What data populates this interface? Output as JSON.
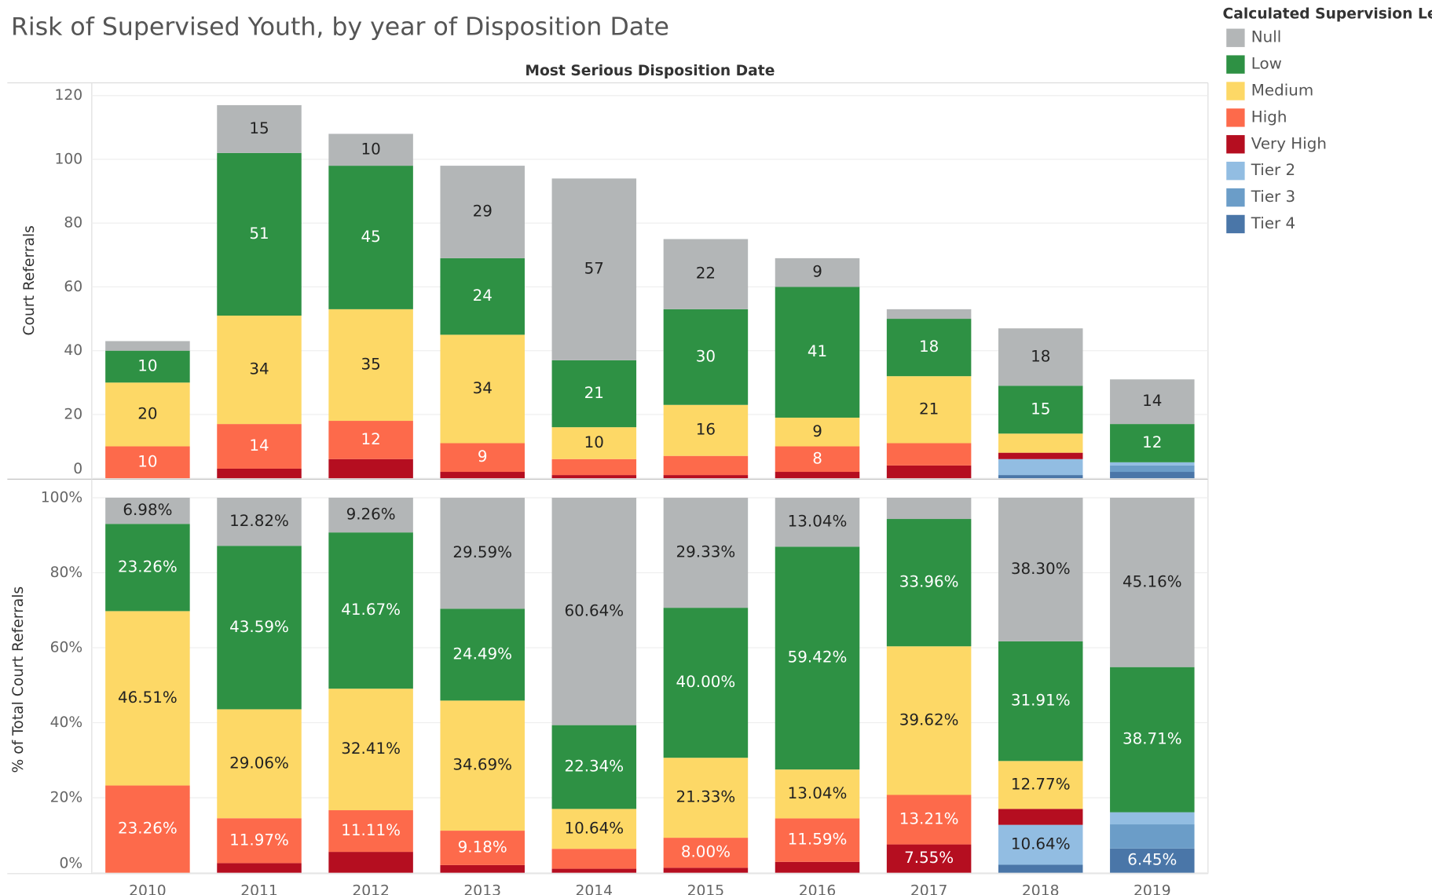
{
  "chart_data": [
    {
      "type": "bar",
      "stacked": true,
      "title": "Risk of Supervised Youth, by year of Disposition Date",
      "x_label": "Most Serious Disposition Date",
      "y_label": "Court Referrals",
      "legend_title": "Calculated Supervision Le..",
      "ylim": [
        0,
        124
      ],
      "yticks": [
        0,
        20,
        40,
        60,
        80,
        100,
        120
      ],
      "grid": true,
      "series": [
        {
          "name": "Null",
          "color": "#b3b6b7",
          "values": [
            3,
            15,
            10,
            29,
            57,
            22,
            9,
            3,
            18,
            14
          ],
          "value_labels": [
            null,
            "15",
            "10",
            "29",
            "57",
            "22",
            "9",
            null,
            "18",
            "14"
          ]
        },
        {
          "name": "Low",
          "color": "#2e9144",
          "values": [
            10,
            51,
            45,
            24,
            21,
            30,
            41,
            18,
            15,
            12
          ],
          "value_labels": [
            "10",
            "51",
            "45",
            "24",
            "21",
            "30",
            "41",
            "18",
            "15",
            "12"
          ]
        },
        {
          "name": "Medium",
          "color": "#fdd866",
          "values": [
            20,
            34,
            35,
            34,
            10,
            16,
            9,
            21,
            6,
            0
          ],
          "value_labels": [
            "20",
            "34",
            "35",
            "34",
            "10",
            "16",
            "9",
            "21",
            null,
            null
          ]
        },
        {
          "name": "High",
          "color": "#fd6a4b",
          "values": [
            10,
            14,
            12,
            9,
            5,
            6,
            8,
            7,
            0,
            0
          ],
          "value_labels": [
            "10",
            "14",
            "12",
            "9",
            null,
            null,
            "8",
            null,
            null,
            null
          ]
        },
        {
          "name": "Very High",
          "color": "#b50e20",
          "values": [
            0,
            3,
            6,
            2,
            1,
            1,
            2,
            4,
            2,
            0
          ],
          "value_labels": [
            null,
            null,
            null,
            null,
            null,
            null,
            null,
            null,
            null,
            null
          ]
        },
        {
          "name": "Tier 2",
          "color": "#92bde2",
          "values": [
            0,
            0,
            0,
            0,
            0,
            0,
            0,
            0,
            5,
            1
          ],
          "value_labels": [
            null,
            null,
            null,
            null,
            null,
            null,
            null,
            null,
            null,
            null
          ]
        },
        {
          "name": "Tier 3",
          "color": "#6b9dc8",
          "values": [
            0,
            0,
            0,
            0,
            0,
            0,
            0,
            0,
            0,
            2
          ],
          "value_labels": [
            null,
            null,
            null,
            null,
            null,
            null,
            null,
            null,
            null,
            null
          ]
        },
        {
          "name": "Tier 4",
          "color": "#4a76a8",
          "values": [
            0,
            0,
            0,
            0,
            0,
            0,
            0,
            0,
            1,
            2
          ],
          "value_labels": [
            null,
            null,
            null,
            null,
            null,
            null,
            null,
            null,
            null,
            null
          ]
        }
      ]
    },
    {
      "type": "bar",
      "stacked": true,
      "y_label": "% of Total Court Referrals",
      "categories": [
        "2010",
        "2011",
        "2012",
        "2013",
        "2014",
        "2015",
        "2016",
        "2017",
        "2018",
        "2019"
      ],
      "ylim": [
        0,
        103
      ],
      "yticks": [
        {
          "value": 0,
          "label": "0%"
        },
        {
          "value": 20,
          "label": "20%"
        },
        {
          "value": 40,
          "label": "40%"
        },
        {
          "value": 60,
          "label": "60%"
        },
        {
          "value": 80,
          "label": "80%"
        },
        {
          "value": 100,
          "label": "100%"
        }
      ],
      "grid": true,
      "series": [
        {
          "color": "#b3b6b7",
          "values": [
            6.98,
            12.82,
            9.26,
            29.59,
            60.64,
            29.33,
            13.04,
            5.66,
            38.3,
            45.16
          ],
          "value_labels": [
            "6.98%",
            "12.82%",
            "9.26%",
            "29.59%",
            "60.64%",
            "29.33%",
            "13.04%",
            null,
            "38.30%",
            "45.16%"
          ]
        },
        {
          "color": "#2e9144",
          "values": [
            23.26,
            43.59,
            41.67,
            24.49,
            22.34,
            40.0,
            59.42,
            33.96,
            31.91,
            38.71
          ],
          "value_labels": [
            "23.26%",
            "43.59%",
            "41.67%",
            "24.49%",
            "22.34%",
            "40.00%",
            "59.42%",
            "33.96%",
            "31.91%",
            "38.71%"
          ]
        },
        {
          "color": "#fdd866",
          "values": [
            46.51,
            29.06,
            32.41,
            34.69,
            10.64,
            21.33,
            13.04,
            39.62,
            12.77,
            0
          ],
          "value_labels": [
            "46.51%",
            "29.06%",
            "32.41%",
            "34.69%",
            "10.64%",
            "21.33%",
            "13.04%",
            "39.62%",
            "12.77%",
            null
          ]
        },
        {
          "color": "#fd6a4b",
          "values": [
            23.26,
            11.97,
            11.11,
            9.18,
            5.32,
            8.0,
            11.59,
            13.21,
            0,
            0
          ],
          "value_labels": [
            "23.26%",
            "11.97%",
            "11.11%",
            "9.18%",
            null,
            "8.00%",
            "11.59%",
            "13.21%",
            null,
            null
          ]
        },
        {
          "color": "#b50e20",
          "values": [
            0,
            2.56,
            5.56,
            2.04,
            1.06,
            1.33,
            2.9,
            7.55,
            4.26,
            0
          ],
          "value_labels": [
            null,
            null,
            null,
            null,
            null,
            null,
            null,
            "7.55%",
            null,
            null
          ]
        },
        {
          "color": "#92bde2",
          "values": [
            0,
            0,
            0,
            0,
            0,
            0,
            0,
            0,
            10.64,
            3.23
          ],
          "value_labels": [
            null,
            null,
            null,
            null,
            null,
            null,
            null,
            null,
            "10.64%",
            null
          ]
        },
        {
          "color": "#6b9dc8",
          "values": [
            0,
            0,
            0,
            0,
            0,
            0,
            0,
            0,
            0,
            6.45
          ],
          "value_labels": [
            null,
            null,
            null,
            null,
            null,
            null,
            null,
            null,
            null,
            null
          ]
        },
        {
          "color": "#4a76a8",
          "values": [
            0,
            0,
            0,
            0,
            0,
            0,
            0,
            0,
            2.13,
            6.45
          ],
          "value_labels": [
            null,
            null,
            null,
            null,
            null,
            null,
            null,
            null,
            null,
            "6.45%"
          ]
        }
      ]
    }
  ]
}
